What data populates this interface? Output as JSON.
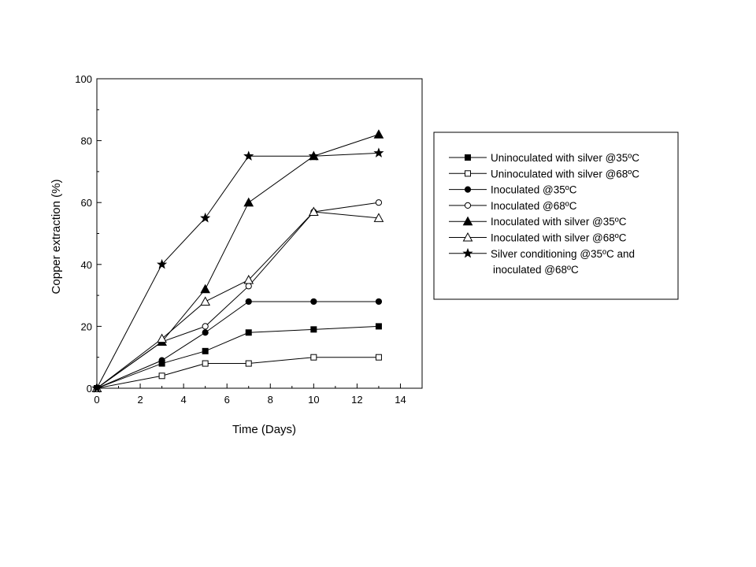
{
  "chart_data": {
    "type": "line",
    "title": "",
    "xlabel": "Time (Days)",
    "ylabel": "Copper extraction (%)",
    "xlim": [
      0,
      15
    ],
    "ylim": [
      0,
      100
    ],
    "xticks": [
      "0",
      "2",
      "4",
      "6",
      "8",
      "10",
      "12",
      "14"
    ],
    "yticks": [
      "0",
      "20",
      "40",
      "60",
      "80",
      "100"
    ],
    "grid": false,
    "legend_position": "right",
    "series": [
      {
        "name": "Uninoculated with silver @35ºC",
        "marker": "square-filled",
        "x": [
          0,
          3,
          5,
          7,
          10,
          13
        ],
        "values": [
          0,
          8,
          12,
          18,
          19,
          20
        ]
      },
      {
        "name": "Uninoculated with silver @68ºC",
        "marker": "square-open",
        "x": [
          0,
          3,
          5,
          7,
          10,
          13
        ],
        "values": [
          0,
          4,
          8,
          8,
          10,
          10
        ]
      },
      {
        "name": "Inoculated @35ºC",
        "marker": "circle-filled",
        "x": [
          0,
          3,
          5,
          7,
          10,
          13
        ],
        "values": [
          0,
          9,
          18,
          28,
          28,
          28
        ]
      },
      {
        "name": "Inoculated @68ºC",
        "marker": "circle-open",
        "x": [
          0,
          3,
          5,
          7,
          10,
          13
        ],
        "values": [
          0,
          15,
          20,
          33,
          57,
          60
        ]
      },
      {
        "name": "Inoculated with silver @35ºC",
        "marker": "triangle-filled",
        "x": [
          0,
          3,
          5,
          7,
          10,
          13
        ],
        "values": [
          0,
          15,
          32,
          60,
          75,
          82
        ]
      },
      {
        "name": "Inoculated with silver @68ºC",
        "marker": "triangle-open",
        "x": [
          0,
          3,
          5,
          7,
          10,
          13
        ],
        "values": [
          0,
          16,
          28,
          35,
          57,
          55
        ]
      },
      {
        "name": "Silver conditioning @35ºC and inoculated @68ºC",
        "marker": "star-filled",
        "legend_lines": [
          "Silver conditioning @35ºC and",
          "inoculated @68ºC"
        ],
        "x": [
          0,
          3,
          5,
          7,
          10,
          13
        ],
        "values": [
          0,
          40,
          55,
          75,
          75,
          76
        ]
      }
    ]
  }
}
